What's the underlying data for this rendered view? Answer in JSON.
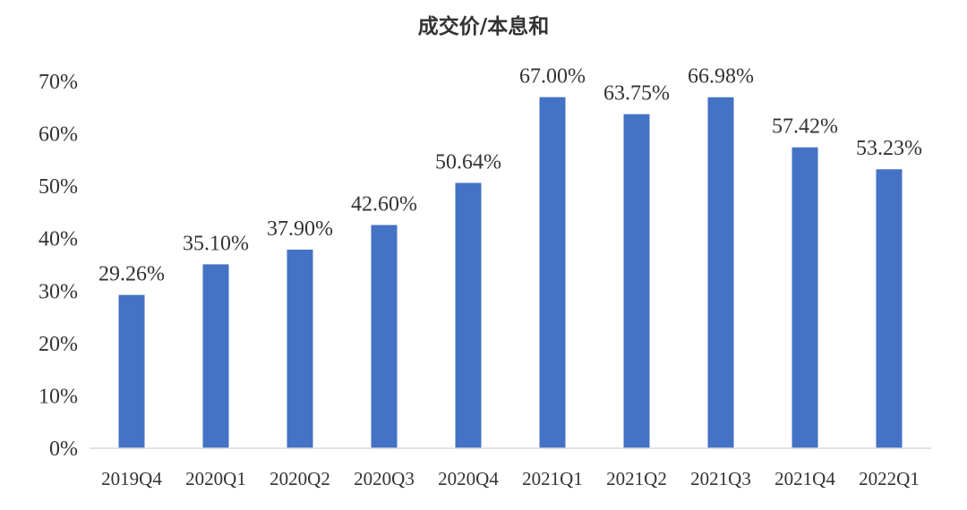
{
  "chart_data": {
    "type": "bar",
    "title": "成交价/本息和",
    "xlabel": "",
    "ylabel": "",
    "categories": [
      "2019Q4",
      "2020Q1",
      "2020Q2",
      "2020Q3",
      "2020Q4",
      "2021Q1",
      "2021Q2",
      "2021Q3",
      "2021Q4",
      "2022Q1"
    ],
    "values": [
      29.26,
      35.1,
      37.9,
      42.6,
      50.64,
      67.0,
      63.75,
      66.98,
      57.42,
      53.23
    ],
    "data_labels": [
      "29.26%",
      "35.10%",
      "37.90%",
      "42.60%",
      "50.64%",
      "67.00%",
      "63.75%",
      "66.98%",
      "57.42%",
      "53.23%"
    ],
    "ylim": [
      0,
      70
    ],
    "yticks": [
      0,
      10,
      20,
      30,
      40,
      50,
      60,
      70
    ],
    "ytick_labels": [
      "0%",
      "10%",
      "20%",
      "30%",
      "40%",
      "50%",
      "60%",
      "70%"
    ],
    "grid": false,
    "legend": "none",
    "bar_color": "#4472c4",
    "axis_color": "#d9d9d9"
  }
}
